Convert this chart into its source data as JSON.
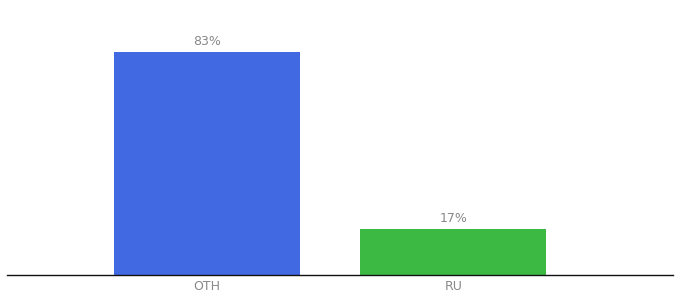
{
  "categories": [
    "OTH",
    "RU"
  ],
  "values": [
    83,
    17
  ],
  "bar_colors": [
    "#4169e1",
    "#3cb943"
  ],
  "label_texts": [
    "83%",
    "17%"
  ],
  "background_color": "#ffffff",
  "ylim": [
    0,
    100
  ],
  "bar_width": 0.28,
  "x_positions": [
    0.35,
    0.72
  ],
  "xlim": [
    0.05,
    1.05
  ],
  "label_fontsize": 9,
  "tick_fontsize": 9,
  "label_color": "#888888"
}
